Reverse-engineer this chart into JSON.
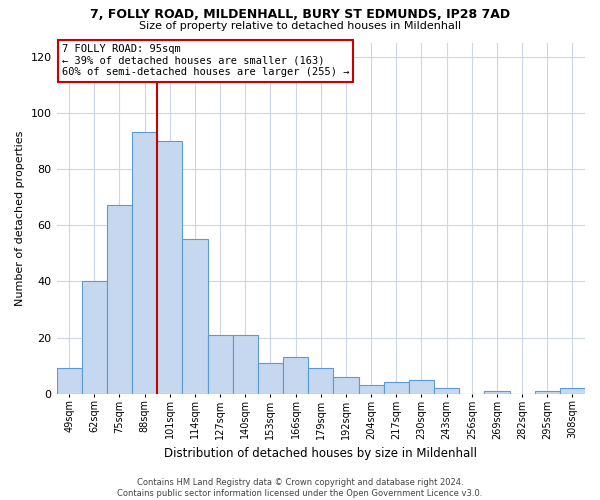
{
  "title1": "7, FOLLY ROAD, MILDENHALL, BURY ST EDMUNDS, IP28 7AD",
  "title2": "Size of property relative to detached houses in Mildenhall",
  "xlabel": "Distribution of detached houses by size in Mildenhall",
  "ylabel": "Number of detached properties",
  "categories": [
    "49sqm",
    "62sqm",
    "75sqm",
    "88sqm",
    "101sqm",
    "114sqm",
    "127sqm",
    "140sqm",
    "153sqm",
    "166sqm",
    "179sqm",
    "192sqm",
    "204sqm",
    "217sqm",
    "230sqm",
    "243sqm",
    "256sqm",
    "269sqm",
    "282sqm",
    "295sqm",
    "308sqm"
  ],
  "values": [
    9,
    40,
    67,
    93,
    90,
    55,
    21,
    21,
    11,
    13,
    9,
    6,
    3,
    4,
    5,
    2,
    0,
    1,
    0,
    1,
    2
  ],
  "bar_color": "#c5d8f0",
  "bar_edge_color": "#5b9bd5",
  "vline_color": "#cc0000",
  "vline_x_idx": 3.5,
  "annotation_line1": "7 FOLLY ROAD: 95sqm",
  "annotation_line2": "← 39% of detached houses are smaller (163)",
  "annotation_line3": "60% of semi-detached houses are larger (255) →",
  "annotation_box_color": "#ffffff",
  "annotation_box_edge": "#cc0000",
  "ylim": [
    0,
    125
  ],
  "yticks": [
    0,
    20,
    40,
    60,
    80,
    100,
    120
  ],
  "footer1": "Contains HM Land Registry data © Crown copyright and database right 2024.",
  "footer2": "Contains public sector information licensed under the Open Government Licence v3.0.",
  "bg_color": "#ffffff",
  "grid_color": "#ccd6e8"
}
